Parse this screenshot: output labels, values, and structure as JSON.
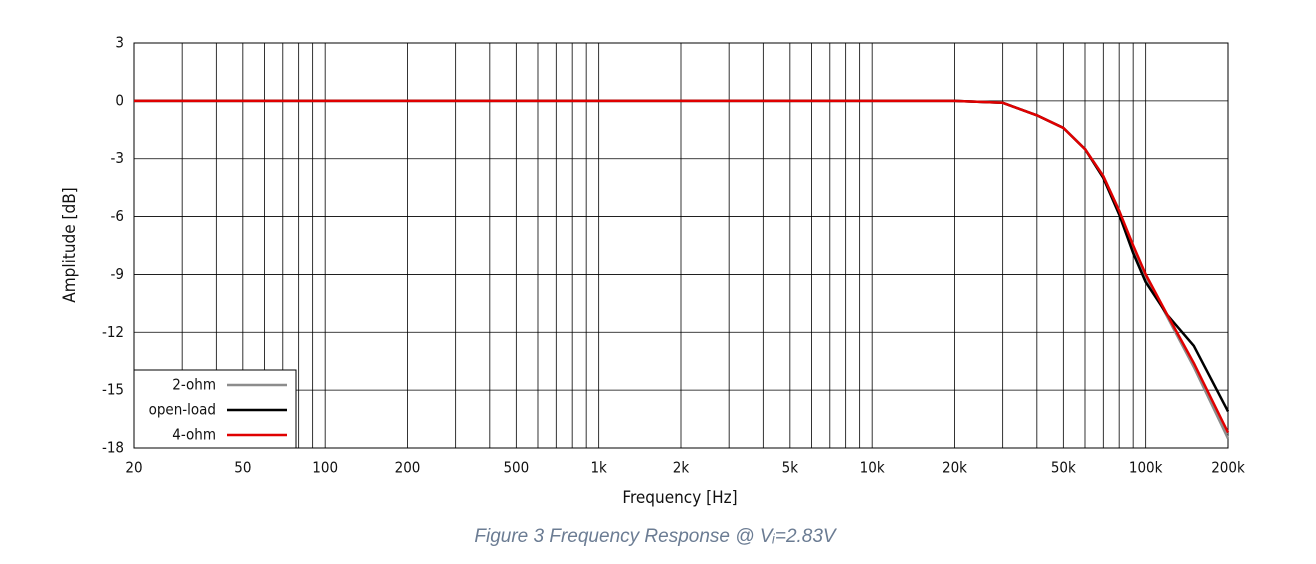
{
  "chart_data": {
    "type": "line",
    "x_label": "Frequency [Hz]",
    "y_label": "Amplitude [dB]",
    "caption": "Figure 3 Frequency Response @ Vᵢ=2.83V",
    "log_x": true,
    "grid": true,
    "legend": "lower left",
    "x": [
      20,
      100,
      1000,
      10000,
      20000,
      30000,
      40000,
      50000,
      60000,
      70000,
      80000,
      90000,
      100000,
      120000,
      150000,
      200000
    ],
    "series": [
      {
        "name": "2-ohm",
        "color": "#8c8c8c",
        "values": [
          0,
          0,
          0,
          0,
          0,
          -0.1,
          -0.75,
          -1.4,
          -2.5,
          -3.9,
          -5.7,
          -7.6,
          -9.1,
          -11.2,
          -13.8,
          -17.5
        ]
      },
      {
        "name": "open-load",
        "color": "#000000",
        "values": [
          0,
          0,
          0,
          0,
          0,
          -0.1,
          -0.75,
          -1.4,
          -2.5,
          -4.0,
          -5.9,
          -7.9,
          -9.4,
          -11.1,
          -12.7,
          -16.1
        ]
      },
      {
        "name": "4-ohm",
        "color": "#e00000",
        "values": [
          0,
          0,
          0,
          0,
          0,
          -0.1,
          -0.75,
          -1.4,
          -2.5,
          -3.9,
          -5.7,
          -7.5,
          -9.0,
          -11.1,
          -13.6,
          -17.2
        ]
      }
    ],
    "xlim": [
      20,
      200000
    ],
    "ylim": [
      -18,
      3
    ],
    "yticks": [
      3,
      0,
      -3,
      -6,
      -9,
      -12,
      -15,
      -18
    ],
    "xticks": [
      20,
      50,
      100,
      200,
      500,
      {
        "value": 1000,
        "label": "1k"
      },
      {
        "value": 2000,
        "label": "2k"
      },
      {
        "value": 5000,
        "label": "5k"
      },
      {
        "value": 10000,
        "label": "10k"
      },
      {
        "value": 20000,
        "label": "20k"
      },
      {
        "value": 50000,
        "label": "50k"
      },
      {
        "value": 100000,
        "label": "100k"
      },
      {
        "value": 200000,
        "label": "200k"
      }
    ],
    "xminorticks": [
      30,
      40,
      60,
      70,
      80,
      90,
      300,
      400,
      600,
      700,
      800,
      900,
      3000,
      4000,
      6000,
      7000,
      8000,
      9000,
      30000,
      40000,
      60000,
      70000,
      80000,
      90000
    ]
  }
}
